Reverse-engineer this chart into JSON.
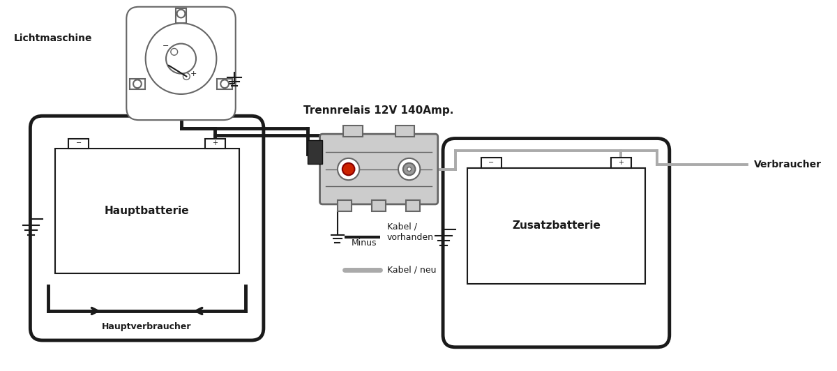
{
  "bg_color": "#ffffff",
  "label_lichtmaschine": "Lichtmaschine",
  "label_hauptbatterie": "Hauptbatterie",
  "label_trennrelais": "Trennrelais 12V 140Amp.",
  "label_zusatzbatterie": "Zusatzbatterie",
  "label_verbraucher": "Verbraucher",
  "label_hauptverbraucher": "Hauptverbraucher",
  "label_minus": "Minus",
  "legend_kabel_vorhanden": "Kabel /\nvorhanden",
  "legend_kabel_neu": "Kabel / neu",
  "ec": "#1a1a1a",
  "nc": "#aaaaaa",
  "cc": "#cccccc",
  "cb": "#666666",
  "tc": "#1a1a1a",
  "lw_thick": 3.5,
  "lw_thin": 1.5,
  "lw_new": 2.8,
  "fs": 9
}
